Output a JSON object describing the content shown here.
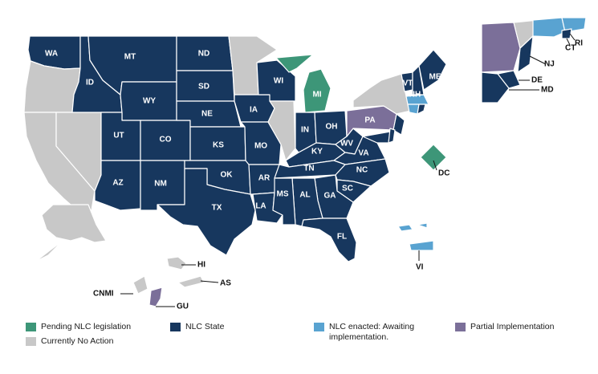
{
  "colors": {
    "nlc_state": "#17375e",
    "pending": "#3d9678",
    "enacted": "#59a3d1",
    "partial": "#7b6f99",
    "no_action": "#c8c8c8"
  },
  "legend": {
    "pending": "Pending NLC legislation",
    "nlc_state": "NLC State",
    "enacted": "NLC enacted: Awaiting implementation.",
    "partial": "Partial Implementation",
    "no_action": "Currently No Action"
  },
  "states": {
    "WA": {
      "label": "WA",
      "status": "nlc_state"
    },
    "ID": {
      "label": "ID",
      "status": "nlc_state"
    },
    "MT": {
      "label": "MT",
      "status": "nlc_state"
    },
    "ND": {
      "label": "ND",
      "status": "nlc_state"
    },
    "SD": {
      "label": "SD",
      "status": "nlc_state"
    },
    "WY": {
      "label": "WY",
      "status": "nlc_state"
    },
    "NE": {
      "label": "NE",
      "status": "nlc_state"
    },
    "UT": {
      "label": "UT",
      "status": "nlc_state"
    },
    "CO": {
      "label": "CO",
      "status": "nlc_state"
    },
    "KS": {
      "label": "KS",
      "status": "nlc_state"
    },
    "AZ": {
      "label": "AZ",
      "status": "nlc_state"
    },
    "NM": {
      "label": "NM",
      "status": "nlc_state"
    },
    "OK": {
      "label": "OK",
      "status": "nlc_state"
    },
    "TX": {
      "label": "TX",
      "status": "nlc_state"
    },
    "IA": {
      "label": "IA",
      "status": "nlc_state"
    },
    "MO": {
      "label": "MO",
      "status": "nlc_state"
    },
    "AR": {
      "label": "AR",
      "status": "nlc_state"
    },
    "LA": {
      "label": "LA",
      "status": "nlc_state"
    },
    "WI": {
      "label": "WI",
      "status": "nlc_state"
    },
    "MI": {
      "label": "MI",
      "status": "pending"
    },
    "IN": {
      "label": "IN",
      "status": "nlc_state"
    },
    "OH": {
      "label": "OH",
      "status": "nlc_state"
    },
    "KY": {
      "label": "KY",
      "status": "nlc_state"
    },
    "TN": {
      "label": "TN",
      "status": "nlc_state"
    },
    "MS": {
      "label": "MS",
      "status": "nlc_state"
    },
    "AL": {
      "label": "AL",
      "status": "nlc_state"
    },
    "GA": {
      "label": "GA",
      "status": "nlc_state"
    },
    "FL": {
      "label": "FL",
      "status": "nlc_state"
    },
    "SC": {
      "label": "SC",
      "status": "nlc_state"
    },
    "NC": {
      "label": "NC",
      "status": "nlc_state"
    },
    "VA": {
      "label": "VA",
      "status": "nlc_state"
    },
    "WV": {
      "label": "WV",
      "status": "nlc_state"
    },
    "PA": {
      "label": "PA",
      "status": "partial"
    },
    "VT": {
      "label": "VT",
      "status": "nlc_state"
    },
    "NH": {
      "label": "NH",
      "status": "nlc_state"
    },
    "ME": {
      "label": "ME",
      "status": "nlc_state"
    },
    "NJ": {
      "label": "NJ",
      "status": "nlc_state"
    },
    "DE": {
      "label": "DE",
      "status": "nlc_state"
    },
    "MD": {
      "label": "MD",
      "status": "nlc_state"
    },
    "CT": {
      "label": "CT",
      "status": "enacted"
    },
    "RI": {
      "label": "RI",
      "status": "nlc_state"
    },
    "DC": {
      "label": "DC",
      "status": "pending"
    },
    "VI": {
      "label": "VI",
      "status": "enacted"
    },
    "HI": {
      "label": "HI",
      "status": "no_action"
    },
    "AS": {
      "label": "AS",
      "status": "no_action"
    },
    "GU": {
      "label": "GU",
      "status": "partial"
    },
    "CNMI": {
      "label": "CNMI",
      "status": "no_action"
    },
    "OR": {
      "label": "",
      "status": "no_action"
    },
    "CA": {
      "label": "",
      "status": "no_action"
    },
    "NV": {
      "label": "",
      "status": "no_action"
    },
    "MN": {
      "label": "",
      "status": "no_action"
    },
    "IL": {
      "label": "",
      "status": "no_action"
    },
    "NY": {
      "label": "",
      "status": "no_action"
    },
    "MA": {
      "label": "",
      "status": "enacted"
    },
    "AK": {
      "label": "",
      "status": "no_action"
    }
  }
}
